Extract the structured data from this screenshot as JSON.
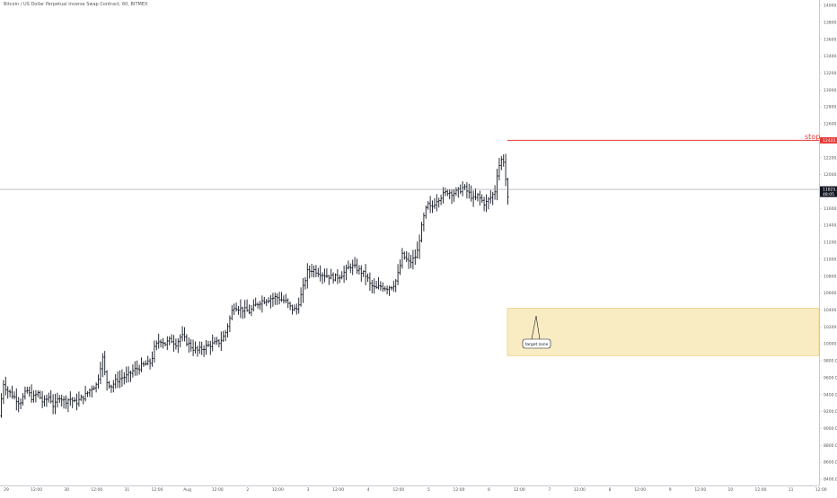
{
  "chart_data": {
    "type": "ohlc",
    "title": "Bitcoin / US Dollar Perpetual Inverse Swap Contract, 60, BITMEX",
    "x_ticks": [
      "29",
      "12:00",
      "30",
      "12:00",
      "31",
      "12:00",
      "Aug",
      "12:00",
      "2",
      "12:00",
      "3",
      "12:00",
      "4",
      "12:00",
      "5",
      "12:00",
      "6",
      "12:00",
      "7",
      "12:00",
      "8",
      "12:00",
      "9",
      "12:00",
      "10",
      "12:00",
      "11",
      "12:00"
    ],
    "y_ticks": [
      "14000.0",
      "13800.0",
      "13600.0",
      "13400.0",
      "13200.0",
      "13000.0",
      "12800.0",
      "12600.0",
      "12400.0",
      "12200.0",
      "12000.0",
      "11800.0",
      "11600.0",
      "11400.0",
      "11200.0",
      "11000.0",
      "10800.0",
      "10600.0",
      "10400.0",
      "10200.0",
      "10000.0",
      "9800.0",
      "9600.0",
      "9400.0",
      "9200.0",
      "9000.0",
      "8800.0",
      "8600.0",
      "8400.0"
    ],
    "ylim": [
      8400,
      14000
    ],
    "price_path": [
      [
        0,
        9150
      ],
      [
        3,
        9550
      ],
      [
        8,
        9450
      ],
      [
        15,
        9380
      ],
      [
        22,
        9300
      ],
      [
        30,
        9450
      ],
      [
        36,
        9350
      ],
      [
        42,
        9420
      ],
      [
        48,
        9300
      ],
      [
        55,
        9380
      ],
      [
        60,
        9250
      ],
      [
        66,
        9380
      ],
      [
        72,
        9320
      ],
      [
        78,
        9350
      ],
      [
        84,
        9300
      ],
      [
        90,
        9350
      ],
      [
        96,
        9400
      ],
      [
        102,
        9480
      ],
      [
        108,
        9520
      ],
      [
        114,
        9850
      ],
      [
        118,
        9560
      ],
      [
        124,
        9500
      ],
      [
        130,
        9570
      ],
      [
        136,
        9600
      ],
      [
        142,
        9620
      ],
      [
        148,
        9680
      ],
      [
        155,
        9720
      ],
      [
        162,
        9760
      ],
      [
        168,
        9780
      ],
      [
        172,
        9950
      ],
      [
        178,
        10050
      ],
      [
        184,
        10000
      ],
      [
        190,
        10050
      ],
      [
        196,
        10000
      ],
      [
        202,
        10100
      ],
      [
        208,
        10020
      ],
      [
        214,
        9950
      ],
      [
        220,
        9920
      ],
      [
        226,
        9950
      ],
      [
        232,
        9980
      ],
      [
        238,
        10000
      ],
      [
        244,
        10020
      ],
      [
        250,
        10100
      ],
      [
        256,
        10300
      ],
      [
        260,
        10450
      ],
      [
        266,
        10420
      ],
      [
        272,
        10400
      ],
      [
        278,
        10380
      ],
      [
        284,
        10450
      ],
      [
        290,
        10500
      ],
      [
        296,
        10520
      ],
      [
        302,
        10540
      ],
      [
        308,
        10550
      ],
      [
        314,
        10520
      ],
      [
        318,
        10500
      ],
      [
        324,
        10420
      ],
      [
        330,
        10400
      ],
      [
        336,
        10600
      ],
      [
        342,
        10850
      ],
      [
        348,
        10880
      ],
      [
        354,
        10850
      ],
      [
        360,
        10820
      ],
      [
        366,
        10800
      ],
      [
        372,
        10780
      ],
      [
        378,
        10800
      ],
      [
        384,
        10850
      ],
      [
        390,
        10920
      ],
      [
        396,
        10900
      ],
      [
        402,
        10850
      ],
      [
        408,
        10800
      ],
      [
        412,
        10700
      ],
      [
        418,
        10650
      ],
      [
        424,
        10680
      ],
      [
        430,
        10660
      ],
      [
        436,
        10680
      ],
      [
        440,
        10720
      ],
      [
        444,
        10850
      ],
      [
        448,
        11050
      ],
      [
        452,
        11000
      ],
      [
        456,
        10950
      ],
      [
        460,
        11000
      ],
      [
        464,
        11050
      ],
      [
        468,
        11300
      ],
      [
        472,
        11500
      ],
      [
        476,
        11650
      ],
      [
        480,
        11600
      ],
      [
        486,
        11700
      ],
      [
        492,
        11750
      ],
      [
        498,
        11800
      ],
      [
        504,
        11780
      ],
      [
        510,
        11800
      ],
      [
        516,
        11850
      ],
      [
        522,
        11780
      ],
      [
        528,
        11700
      ],
      [
        532,
        11750
      ],
      [
        536,
        11700
      ],
      [
        540,
        11650
      ],
      [
        544,
        11700
      ],
      [
        548,
        11750
      ],
      [
        551,
        11800
      ],
      [
        554,
        12050
      ],
      [
        557,
        12150
      ],
      [
        560,
        12200
      ],
      [
        562,
        12100
      ],
      [
        565,
        11680
      ],
      [
        567,
        11800
      ]
    ],
    "current_price_label": "11825.5",
    "current_time_label": "48:05",
    "current_price": 11825,
    "stop_label": "stop",
    "stop_price_label": "12405.0",
    "stop_price": 12405,
    "target_zone": {
      "label": "target zone",
      "from_price": 9860,
      "to_price": 10420
    },
    "colors": {
      "bars": "#131722",
      "stop": "#e53935",
      "zone_fill": "#f9ecc3",
      "zone_border": "#e8c25a",
      "current": "#131722",
      "grid": "#d1d4dc"
    }
  }
}
